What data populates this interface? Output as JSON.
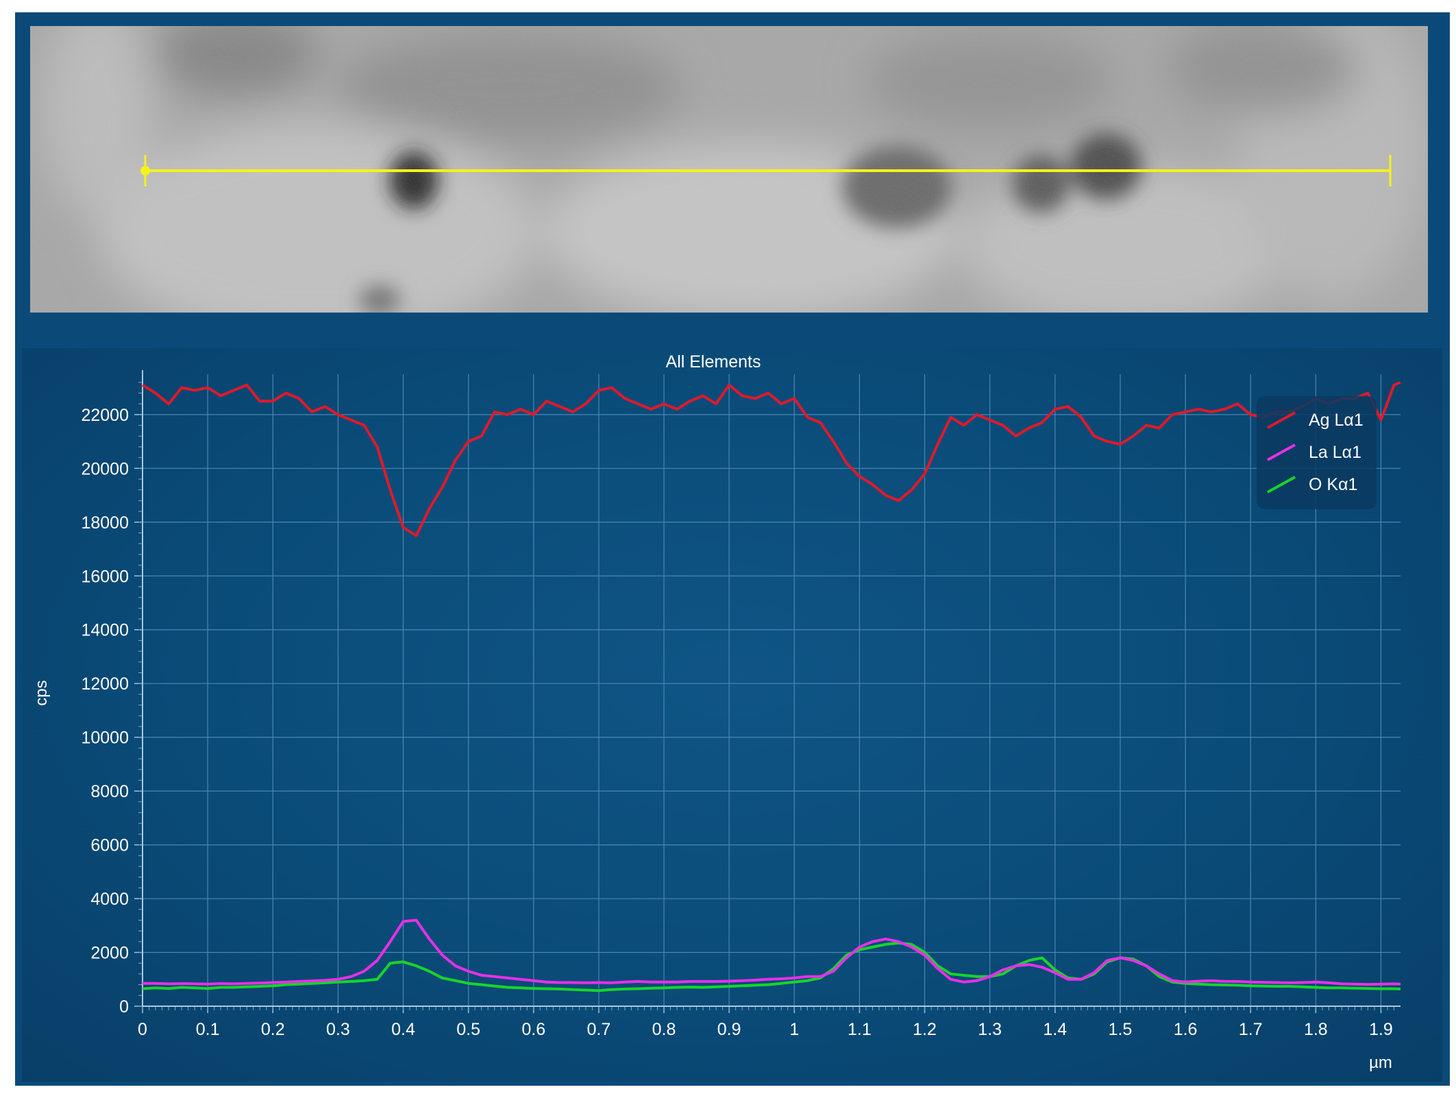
{
  "chart_data": {
    "type": "line",
    "title": "All Elements",
    "xlabel": "",
    "x_unit": "µm",
    "ylabel": "cps",
    "xlim": [
      0,
      1.93
    ],
    "ylim": [
      0,
      23500
    ],
    "grid": true,
    "legend_position": "top-right",
    "x_ticks": [
      "0",
      "0.1",
      "0.2",
      "0.3",
      "0.4",
      "0.5",
      "0.6",
      "0.7",
      "0.8",
      "0.9",
      "1",
      "1.1",
      "1.2",
      "1.3",
      "1.4",
      "1.5",
      "1.6",
      "1.7",
      "1.8",
      "1.9"
    ],
    "y_ticks": [
      "0",
      "2000",
      "4000",
      "6000",
      "8000",
      "10000",
      "12000",
      "14000",
      "16000",
      "18000",
      "20000",
      "22000"
    ],
    "series": [
      {
        "name": "Ag Lα1",
        "color": "#e0192b",
        "x": [
          0,
          0.02,
          0.04,
          0.06,
          0.08,
          0.1,
          0.12,
          0.14,
          0.16,
          0.18,
          0.2,
          0.22,
          0.24,
          0.26,
          0.28,
          0.3,
          0.32,
          0.34,
          0.36,
          0.38,
          0.4,
          0.42,
          0.44,
          0.46,
          0.48,
          0.5,
          0.52,
          0.54,
          0.56,
          0.58,
          0.6,
          0.62,
          0.64,
          0.66,
          0.68,
          0.7,
          0.72,
          0.74,
          0.76,
          0.78,
          0.8,
          0.82,
          0.84,
          0.86,
          0.88,
          0.9,
          0.92,
          0.94,
          0.96,
          0.98,
          1,
          1.02,
          1.04,
          1.06,
          1.08,
          1.1,
          1.12,
          1.14,
          1.16,
          1.18,
          1.2,
          1.22,
          1.24,
          1.26,
          1.28,
          1.3,
          1.32,
          1.34,
          1.36,
          1.38,
          1.4,
          1.42,
          1.44,
          1.46,
          1.48,
          1.5,
          1.52,
          1.54,
          1.56,
          1.58,
          1.6,
          1.62,
          1.64,
          1.66,
          1.68,
          1.7,
          1.72,
          1.74,
          1.76,
          1.78,
          1.8,
          1.82,
          1.84,
          1.86,
          1.88,
          1.9,
          1.92,
          1.93
        ],
        "y": [
          23100,
          22800,
          22400,
          23000,
          22900,
          23000,
          22700,
          22900,
          23100,
          22500,
          22500,
          22800,
          22600,
          22100,
          22300,
          22000,
          21800,
          21600,
          20800,
          19200,
          17800,
          17500,
          18500,
          19300,
          20300,
          21000,
          21200,
          22100,
          22000,
          22200,
          22000,
          22500,
          22300,
          22100,
          22400,
          22900,
          23000,
          22600,
          22400,
          22200,
          22400,
          22200,
          22500,
          22700,
          22400,
          23100,
          22700,
          22600,
          22800,
          22400,
          22600,
          21900,
          21700,
          21000,
          20200,
          19700,
          19400,
          19000,
          18800,
          19200,
          19800,
          20900,
          21900,
          21600,
          22000,
          21800,
          21600,
          21200,
          21500,
          21700,
          22200,
          22300,
          21900,
          21200,
          21000,
          20900,
          21200,
          21600,
          21500,
          22000,
          22100,
          22200,
          22100,
          22200,
          22400,
          22000,
          21900,
          22100,
          22100,
          22300,
          22600,
          22400,
          22600,
          22600,
          22800,
          21800,
          23100,
          23200
        ]
      },
      {
        "name": "La Lα1",
        "color": "#e82fe8",
        "x": [
          0,
          0.02,
          0.04,
          0.06,
          0.08,
          0.1,
          0.12,
          0.14,
          0.16,
          0.18,
          0.2,
          0.22,
          0.24,
          0.26,
          0.28,
          0.3,
          0.32,
          0.34,
          0.36,
          0.38,
          0.4,
          0.42,
          0.44,
          0.46,
          0.48,
          0.5,
          0.52,
          0.54,
          0.56,
          0.58,
          0.6,
          0.62,
          0.64,
          0.66,
          0.68,
          0.7,
          0.72,
          0.74,
          0.76,
          0.78,
          0.8,
          0.82,
          0.84,
          0.86,
          0.88,
          0.9,
          0.92,
          0.94,
          0.96,
          0.98,
          1,
          1.02,
          1.04,
          1.06,
          1.08,
          1.1,
          1.12,
          1.14,
          1.16,
          1.18,
          1.2,
          1.22,
          1.24,
          1.26,
          1.28,
          1.3,
          1.32,
          1.34,
          1.36,
          1.38,
          1.4,
          1.42,
          1.44,
          1.46,
          1.48,
          1.5,
          1.52,
          1.54,
          1.56,
          1.58,
          1.6,
          1.62,
          1.64,
          1.66,
          1.68,
          1.7,
          1.72,
          1.74,
          1.76,
          1.78,
          1.8,
          1.82,
          1.84,
          1.86,
          1.88,
          1.9,
          1.92,
          1.93
        ],
        "y": [
          850,
          850,
          830,
          840,
          830,
          820,
          840,
          830,
          850,
          860,
          880,
          900,
          920,
          940,
          960,
          1000,
          1100,
          1300,
          1700,
          2400,
          3150,
          3200,
          2500,
          1900,
          1500,
          1300,
          1150,
          1100,
          1050,
          1000,
          950,
          900,
          880,
          880,
          870,
          880,
          870,
          900,
          920,
          900,
          900,
          900,
          920,
          920,
          920,
          930,
          950,
          970,
          1000,
          1020,
          1050,
          1100,
          1100,
          1300,
          1800,
          2200,
          2400,
          2500,
          2400,
          2200,
          1900,
          1400,
          1000,
          900,
          950,
          1100,
          1350,
          1500,
          1550,
          1450,
          1250,
          1000,
          1000,
          1250,
          1700,
          1800,
          1700,
          1500,
          1200,
          950,
          900,
          930,
          950,
          920,
          920,
          900,
          890,
          880,
          870,
          880,
          900,
          870,
          830,
          820,
          810,
          820,
          830,
          820
        ]
      },
      {
        "name": "O Kα1",
        "color": "#18d42a",
        "x": [
          0,
          0.02,
          0.04,
          0.06,
          0.08,
          0.1,
          0.12,
          0.14,
          0.16,
          0.18,
          0.2,
          0.22,
          0.24,
          0.26,
          0.28,
          0.3,
          0.32,
          0.34,
          0.36,
          0.38,
          0.4,
          0.42,
          0.44,
          0.46,
          0.48,
          0.5,
          0.52,
          0.54,
          0.56,
          0.58,
          0.6,
          0.62,
          0.64,
          0.66,
          0.68,
          0.7,
          0.72,
          0.74,
          0.76,
          0.78,
          0.8,
          0.82,
          0.84,
          0.86,
          0.88,
          0.9,
          0.92,
          0.94,
          0.96,
          0.98,
          1,
          1.02,
          1.04,
          1.06,
          1.08,
          1.1,
          1.12,
          1.14,
          1.16,
          1.18,
          1.2,
          1.22,
          1.24,
          1.26,
          1.28,
          1.3,
          1.32,
          1.34,
          1.36,
          1.38,
          1.4,
          1.42,
          1.44,
          1.46,
          1.48,
          1.5,
          1.52,
          1.54,
          1.56,
          1.58,
          1.6,
          1.62,
          1.64,
          1.66,
          1.68,
          1.7,
          1.72,
          1.74,
          1.76,
          1.78,
          1.8,
          1.82,
          1.84,
          1.86,
          1.88,
          1.9,
          1.92,
          1.93
        ],
        "y": [
          650,
          680,
          660,
          700,
          680,
          660,
          700,
          700,
          720,
          740,
          760,
          800,
          820,
          850,
          870,
          900,
          920,
          950,
          1000,
          1600,
          1650,
          1500,
          1300,
          1050,
          950,
          850,
          800,
          750,
          700,
          680,
          660,
          650,
          640,
          620,
          600,
          580,
          620,
          640,
          650,
          670,
          680,
          700,
          710,
          700,
          720,
          740,
          760,
          780,
          800,
          850,
          900,
          950,
          1050,
          1400,
          1900,
          2100,
          2200,
          2300,
          2350,
          2300,
          2000,
          1500,
          1200,
          1150,
          1100,
          1100,
          1200,
          1500,
          1700,
          1800,
          1350,
          1050,
          1000,
          1200,
          1650,
          1800,
          1750,
          1500,
          1100,
          900,
          850,
          820,
          800,
          790,
          780,
          760,
          750,
          740,
          740,
          720,
          700,
          680,
          680,
          670,
          660,
          650,
          650,
          640
        ]
      }
    ]
  }
}
